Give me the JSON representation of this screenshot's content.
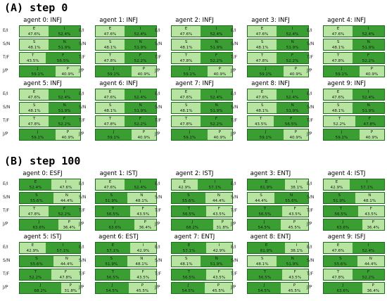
{
  "colors": {
    "dark": "#3a9e32",
    "light": "#b7e4a0"
  },
  "dimensions": [
    {
      "name": "E/I",
      "left": "E",
      "right": "I"
    },
    {
      "name": "S/N",
      "left": "S",
      "right": "N"
    },
    {
      "name": "T/F",
      "left": "T",
      "right": "F"
    },
    {
      "name": "J/P",
      "left": "J",
      "right": "P"
    }
  ],
  "chart_data": {
    "type": "bar",
    "steps": [
      {
        "title": "(A) step 0",
        "agents": [
          {
            "title": "agent 0: INFJ",
            "values": [
              47.6,
              48.1,
              43.5,
              59.1
            ],
            "dominant": [
              "right",
              "right",
              "right",
              "left"
            ]
          },
          {
            "title": "agent 1: INFJ",
            "values": [
              47.6,
              48.1,
              47.8,
              59.1
            ],
            "dominant": [
              "right",
              "right",
              "right",
              "left"
            ]
          },
          {
            "title": "agent 2: INFJ",
            "values": [
              47.6,
              48.1,
              47.8,
              59.1
            ],
            "dominant": [
              "right",
              "right",
              "right",
              "left"
            ]
          },
          {
            "title": "agent 3: INFJ",
            "values": [
              47.6,
              48.1,
              47.8,
              59.1
            ],
            "dominant": [
              "right",
              "right",
              "right",
              "left"
            ]
          },
          {
            "title": "agent 4: INFJ",
            "values": [
              47.6,
              48.1,
              47.8,
              59.1
            ],
            "dominant": [
              "right",
              "right",
              "right",
              "left"
            ]
          },
          {
            "title": "agent 5: INFJ",
            "values": [
              47.6,
              48.1,
              47.8,
              59.1
            ],
            "dominant": [
              "right",
              "right",
              "right",
              "left"
            ]
          },
          {
            "title": "agent 6: INFJ",
            "values": [
              47.6,
              48.1,
              47.8,
              59.1
            ],
            "dominant": [
              "right",
              "right",
              "right",
              "left"
            ]
          },
          {
            "title": "agent 7: INFJ",
            "values": [
              47.6,
              48.1,
              47.8,
              59.1
            ],
            "dominant": [
              "right",
              "right",
              "right",
              "left"
            ]
          },
          {
            "title": "agent 8: INFJ",
            "values": [
              47.6,
              48.1,
              43.5,
              59.1
            ],
            "dominant": [
              "right",
              "right",
              "right",
              "left"
            ]
          },
          {
            "title": "agent 9: INFJ",
            "values": [
              47.6,
              48.1,
              52.2,
              59.1
            ],
            "dominant": [
              "right",
              "right",
              "right",
              "left"
            ]
          }
        ]
      },
      {
        "title": "(B) step 100",
        "agents": [
          {
            "title": "agent 0: ESFJ",
            "values": [
              52.4,
              55.6,
              47.8,
              63.6
            ],
            "dominant": [
              "left",
              "left",
              "right",
              "left"
            ]
          },
          {
            "title": "agent 1: ISTJ",
            "values": [
              47.6,
              51.9,
              56.5,
              63.6
            ],
            "dominant": [
              "right",
              "left",
              "left",
              "left"
            ]
          },
          {
            "title": "agent 2: ISTJ",
            "values": [
              42.9,
              55.6,
              56.5,
              68.2
            ],
            "dominant": [
              "right",
              "left",
              "left",
              "left"
            ]
          },
          {
            "title": "agent 3: ENTJ",
            "values": [
              61.9,
              44.4,
              56.5,
              54.5
            ],
            "dominant": [
              "left",
              "right",
              "left",
              "left"
            ]
          },
          {
            "title": "agent 4: ISTJ",
            "values": [
              42.9,
              51.9,
              56.5,
              63.6
            ],
            "dominant": [
              "right",
              "left",
              "left",
              "left"
            ]
          },
          {
            "title": "agent 5: ISTJ",
            "values": [
              42.9,
              55.6,
              52.2,
              68.2
            ],
            "dominant": [
              "right",
              "left",
              "left",
              "left"
            ]
          },
          {
            "title": "agent 6: ESTJ",
            "values": [
              57.1,
              51.9,
              56.5,
              54.5
            ],
            "dominant": [
              "left",
              "left",
              "left",
              "left"
            ]
          },
          {
            "title": "agent 7: ENTJ",
            "values": [
              57.1,
              48.1,
              56.5,
              54.5
            ],
            "dominant": [
              "left",
              "right",
              "left",
              "left"
            ]
          },
          {
            "title": "agent 8: ENTJ",
            "values": [
              61.9,
              48.1,
              56.5,
              54.5
            ],
            "dominant": [
              "left",
              "right",
              "left",
              "left"
            ]
          },
          {
            "title": "agent 9: ISFJ",
            "values": [
              47.6,
              55.6,
              47.8,
              63.6
            ],
            "dominant": [
              "right",
              "left",
              "right",
              "left"
            ]
          }
        ]
      }
    ]
  }
}
